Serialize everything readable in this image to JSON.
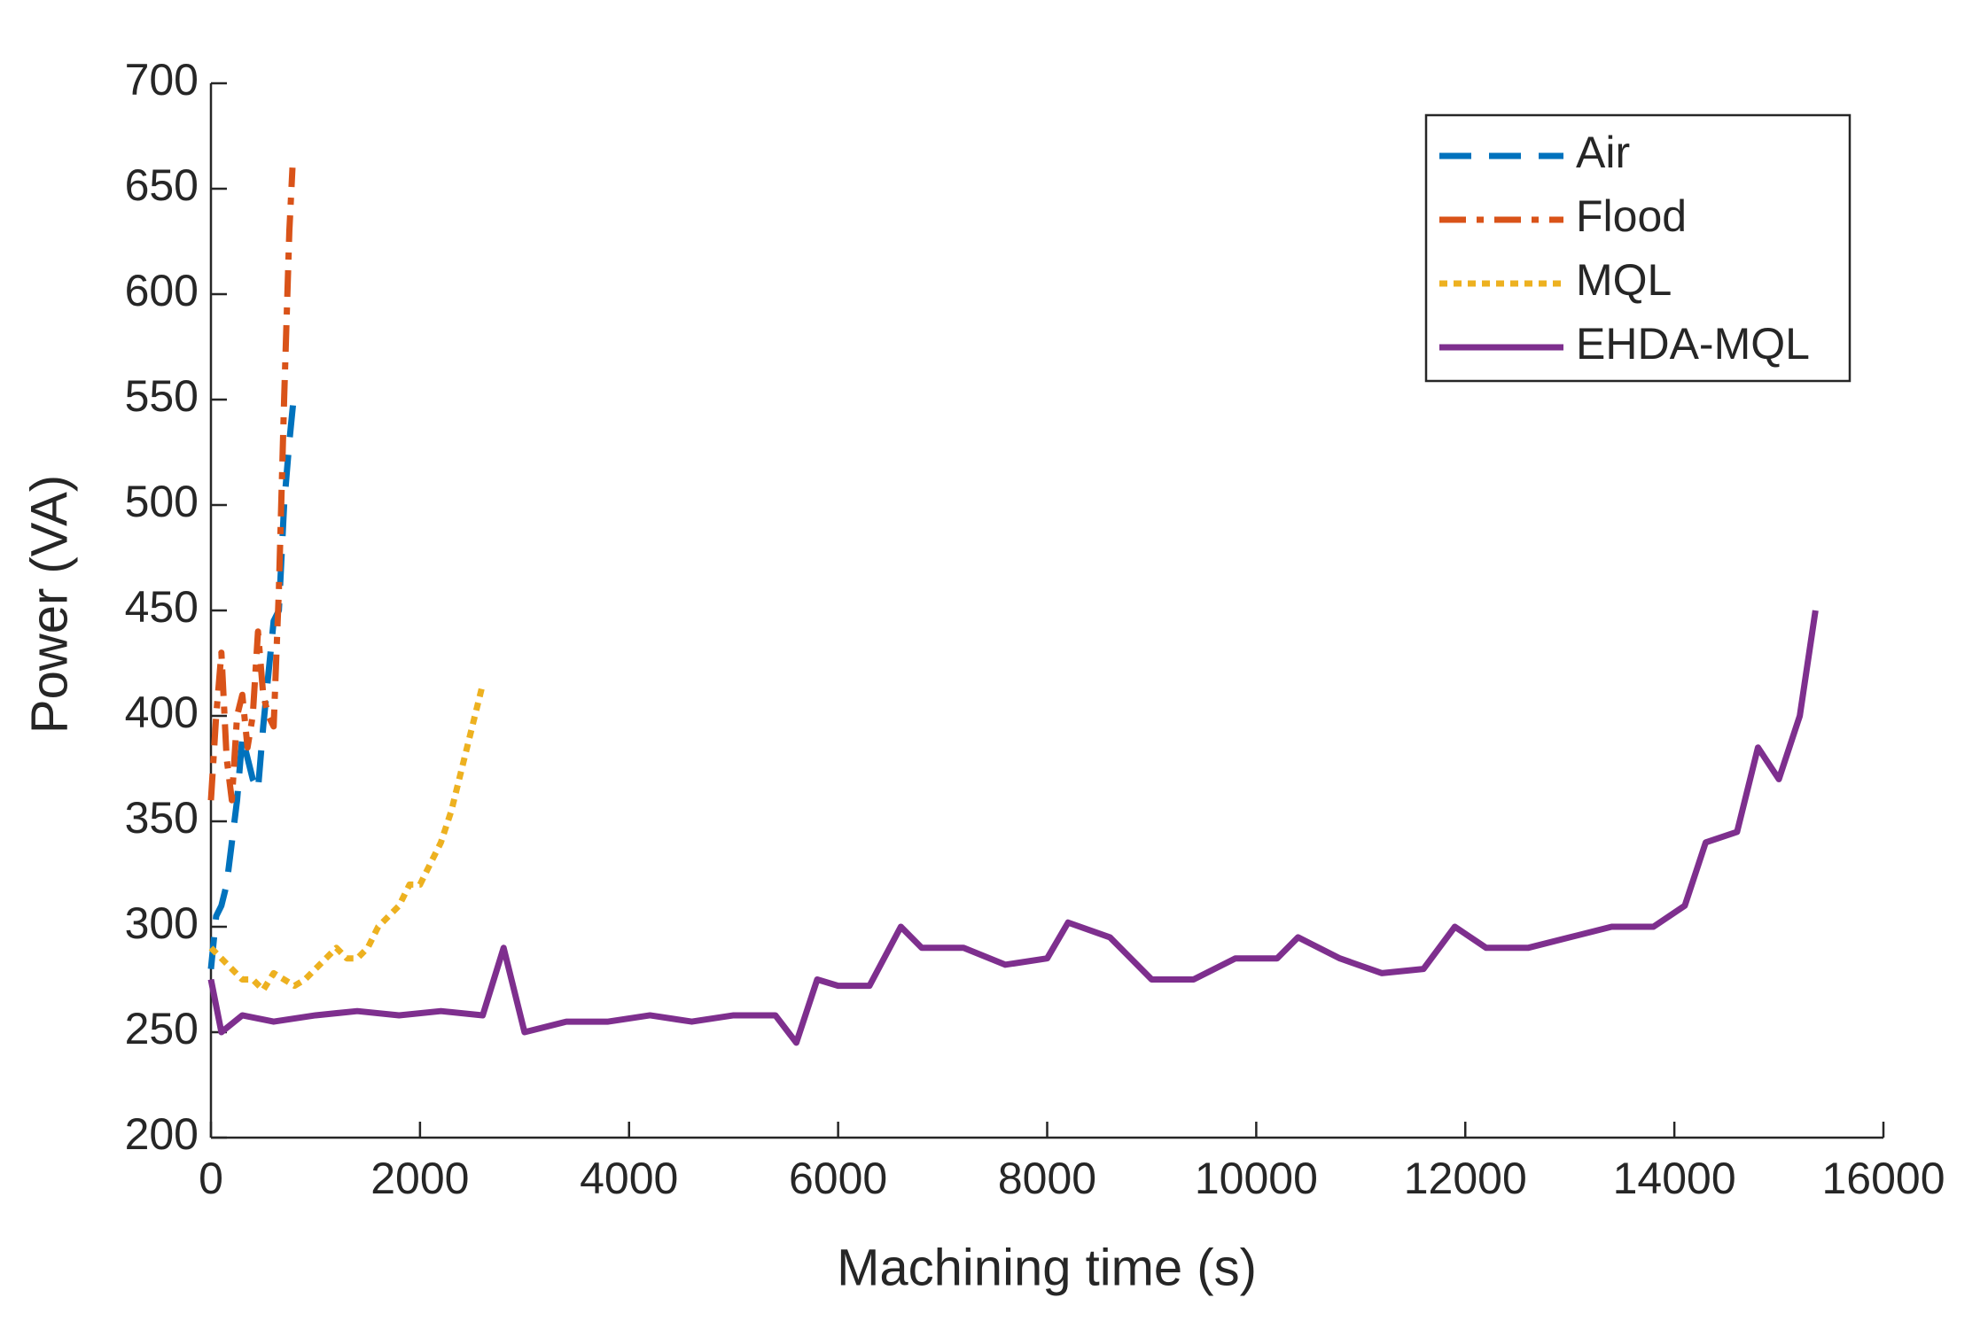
{
  "chart_data": {
    "type": "line",
    "xlabel": "Machining time (s)",
    "ylabel": "Power (VA)",
    "xlim": [
      0,
      16000
    ],
    "xticks": [
      0,
      2000,
      4000,
      6000,
      8000,
      10000,
      12000,
      14000,
      16000
    ],
    "ylim": [
      200,
      700
    ],
    "yticks": [
      200,
      250,
      300,
      350,
      400,
      450,
      500,
      550,
      600,
      650,
      700
    ],
    "legend": "upper right",
    "series": [
      {
        "name": "Air",
        "color": "#0072BD",
        "line_style": "dashed",
        "x": [
          0,
          50,
          100,
          150,
          200,
          250,
          300,
          350,
          400,
          450,
          500,
          550,
          600,
          650,
          700,
          750,
          800
        ],
        "values": [
          280,
          305,
          310,
          320,
          340,
          360,
          390,
          380,
          370,
          365,
          395,
          420,
          445,
          450,
          500,
          530,
          555
        ]
      },
      {
        "name": "Flood",
        "color": "#D95319",
        "line_style": "dashdot",
        "x": [
          0,
          50,
          100,
          150,
          200,
          250,
          300,
          350,
          400,
          450,
          500,
          550,
          600,
          650,
          700,
          750,
          780
        ],
        "values": [
          360,
          400,
          430,
          380,
          360,
          400,
          410,
          385,
          400,
          440,
          410,
          400,
          395,
          460,
          550,
          630,
          660
        ]
      },
      {
        "name": "MQL",
        "color": "#EDB120",
        "line_style": "dotted",
        "x": [
          0,
          100,
          200,
          300,
          400,
          500,
          600,
          700,
          800,
          900,
          1000,
          1100,
          1200,
          1300,
          1400,
          1500,
          1600,
          1700,
          1800,
          1900,
          2000,
          2100,
          2200,
          2300,
          2400,
          2500,
          2600
        ],
        "values": [
          290,
          285,
          280,
          275,
          275,
          270,
          278,
          275,
          272,
          275,
          280,
          285,
          290,
          285,
          285,
          290,
          300,
          305,
          310,
          320,
          320,
          330,
          340,
          355,
          375,
          395,
          415
        ]
      },
      {
        "name": "EHDA-MQL",
        "color": "#7E2F8E",
        "line_style": "solid",
        "x": [
          0,
          100,
          300,
          600,
          1000,
          1400,
          1800,
          2200,
          2600,
          2800,
          3000,
          3400,
          3800,
          4200,
          4600,
          5000,
          5400,
          5600,
          5800,
          6000,
          6300,
          6600,
          6800,
          7200,
          7600,
          8000,
          8200,
          8600,
          9000,
          9400,
          9800,
          10200,
          10400,
          10800,
          11200,
          11600,
          11900,
          12200,
          12600,
          13000,
          13400,
          13800,
          14100,
          14300,
          14600,
          14800,
          15000,
          15200,
          15350
        ],
        "values": [
          275,
          250,
          258,
          255,
          258,
          260,
          258,
          260,
          258,
          290,
          250,
          255,
          255,
          258,
          255,
          258,
          258,
          245,
          275,
          272,
          272,
          300,
          290,
          290,
          282,
          285,
          302,
          295,
          275,
          275,
          285,
          285,
          295,
          285,
          278,
          280,
          300,
          290,
          290,
          295,
          300,
          300,
          310,
          340,
          345,
          385,
          370,
          400,
          450
        ]
      }
    ]
  }
}
